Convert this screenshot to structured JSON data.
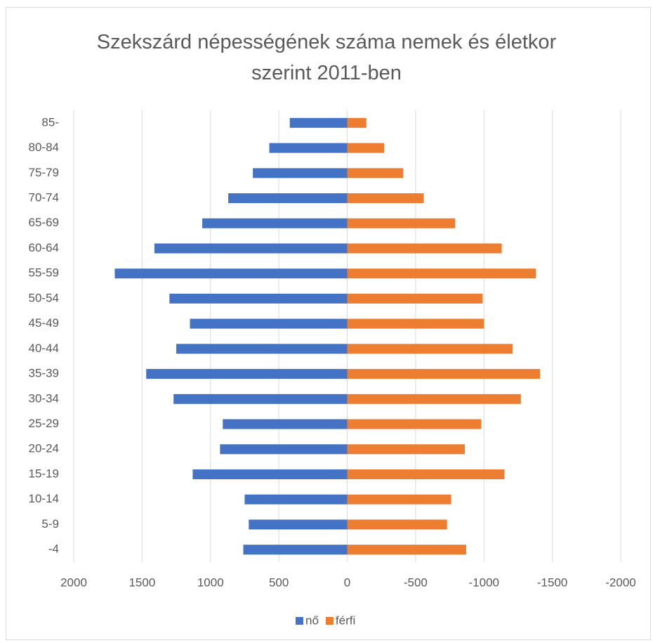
{
  "chart_data": {
    "type": "population-pyramid",
    "title": "Szekszárd népességének száma nemek és életkor szerint 2011-ben",
    "categories": [
      "-4",
      "5-9",
      "10-14",
      "15-19",
      "20-24",
      "25-29",
      "30-34",
      "35-39",
      "40-44",
      "45-49",
      "50-54",
      "55-59",
      "60-64",
      "65-69",
      "70-74",
      "75-79",
      "80-84",
      "85-"
    ],
    "series": [
      {
        "name": "nő",
        "color": "#4472c4",
        "values": [
          760,
          720,
          750,
          1130,
          930,
          910,
          1270,
          1470,
          1250,
          1150,
          1300,
          1700,
          1410,
          1060,
          870,
          690,
          570,
          420
        ]
      },
      {
        "name": "férfi",
        "color": "#ed7d31",
        "values": [
          -870,
          -730,
          -760,
          -1150,
          -860,
          -980,
          -1270,
          -1410,
          -1210,
          -1000,
          -990,
          -1380,
          -1130,
          -790,
          -560,
          -410,
          -270,
          -140
        ]
      }
    ],
    "xlim": [
      2000,
      -2000
    ],
    "xticks": [
      2000,
      1500,
      1000,
      500,
      0,
      -500,
      -1000,
      -1500,
      -2000
    ],
    "grid": true,
    "legend": "bottom"
  }
}
